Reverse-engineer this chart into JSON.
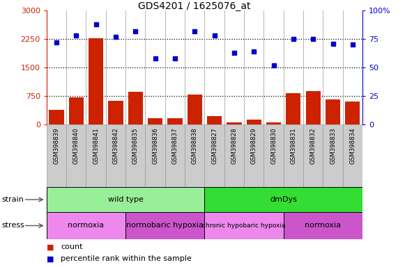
{
  "title": "GDS4201 / 1625076_at",
  "samples": [
    "GSM398839",
    "GSM398840",
    "GSM398841",
    "GSM398842",
    "GSM398835",
    "GSM398836",
    "GSM398837",
    "GSM398838",
    "GSM398827",
    "GSM398828",
    "GSM398829",
    "GSM398830",
    "GSM398831",
    "GSM398832",
    "GSM398833",
    "GSM398834"
  ],
  "counts": [
    380,
    700,
    2280,
    620,
    860,
    155,
    155,
    780,
    220,
    50,
    120,
    55,
    810,
    870,
    650,
    590
  ],
  "percentiles": [
    72,
    78,
    88,
    77,
    82,
    58,
    58,
    82,
    78,
    63,
    64,
    52,
    75,
    75,
    71,
    70
  ],
  "bar_color": "#cc2200",
  "dot_color": "#0000cc",
  "ylim_left": [
    0,
    3000
  ],
  "ylim_right": [
    0,
    100
  ],
  "yticks_left": [
    0,
    750,
    1500,
    2250,
    3000
  ],
  "yticks_right": [
    0,
    25,
    50,
    75,
    100
  ],
  "ytick_labels_left": [
    "0",
    "750",
    "1500",
    "2250",
    "3000"
  ],
  "ytick_labels_right": [
    "0",
    "25",
    "50",
    "75",
    "100%"
  ],
  "left_tick_color": "#cc2200",
  "right_tick_color": "#0000cc",
  "strain_groups": [
    {
      "label": "wild type",
      "start": 0,
      "end": 8,
      "color": "#99ee99"
    },
    {
      "label": "dmDys",
      "start": 8,
      "end": 16,
      "color": "#33dd33"
    }
  ],
  "stress_groups": [
    {
      "label": "normoxia",
      "start": 0,
      "end": 4,
      "color": "#ee88ee"
    },
    {
      "label": "normobaric hypoxia",
      "start": 4,
      "end": 8,
      "color": "#cc55cc"
    },
    {
      "label": "chronic hypobaric hypoxia",
      "start": 8,
      "end": 12,
      "color": "#ee88ee"
    },
    {
      "label": "normoxia",
      "start": 12,
      "end": 16,
      "color": "#cc55cc"
    }
  ],
  "bg_color": "#ffffff",
  "grid_color": "#000000",
  "label_box_color": "#cccccc",
  "label_box_edge": "#999999"
}
